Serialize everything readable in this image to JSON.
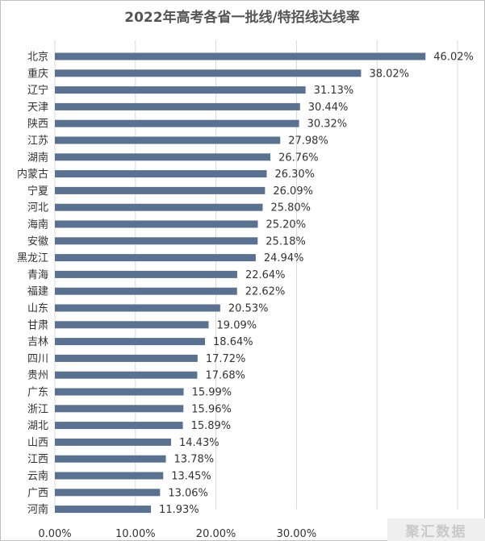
{
  "chart_data": {
    "type": "bar",
    "orientation": "horizontal",
    "title": "2022年高考各省一批线/特招线达线率",
    "categories": [
      "北京",
      "重庆",
      "辽宁",
      "天津",
      "陕西",
      "江苏",
      "湖南",
      "内蒙古",
      "宁夏",
      "河北",
      "海南",
      "安徽",
      "黑龙江",
      "青海",
      "福建",
      "山东",
      "甘肃",
      "吉林",
      "四川",
      "贵州",
      "广东",
      "浙江",
      "湖北",
      "山西",
      "江西",
      "云南",
      "广西",
      "河南"
    ],
    "values": [
      46.02,
      38.02,
      31.13,
      30.44,
      30.32,
      27.98,
      26.76,
      26.3,
      26.09,
      25.8,
      25.2,
      25.18,
      24.94,
      22.64,
      22.62,
      20.53,
      19.09,
      18.64,
      17.72,
      17.68,
      15.99,
      15.96,
      15.89,
      14.43,
      13.78,
      13.45,
      13.06,
      11.93
    ],
    "value_labels": [
      "46.02%",
      "38.02%",
      "31.13%",
      "30.44%",
      "30.32%",
      "27.98%",
      "26.76%",
      "26.30%",
      "26.09%",
      "25.80%",
      "25.20%",
      "25.18%",
      "24.94%",
      "22.64%",
      "22.62%",
      "20.53%",
      "19.09%",
      "18.64%",
      "17.72%",
      "17.68%",
      "15.99%",
      "15.96%",
      "15.89%",
      "14.43%",
      "13.78%",
      "13.45%",
      "13.06%",
      "11.93%"
    ],
    "xticks": [
      "0.00%",
      "10.00%",
      "20.00%",
      "30.00%"
    ],
    "xlim": [
      0,
      50
    ],
    "grid": true,
    "bar_color": "#5a7290"
  },
  "watermark": "聚汇数据"
}
